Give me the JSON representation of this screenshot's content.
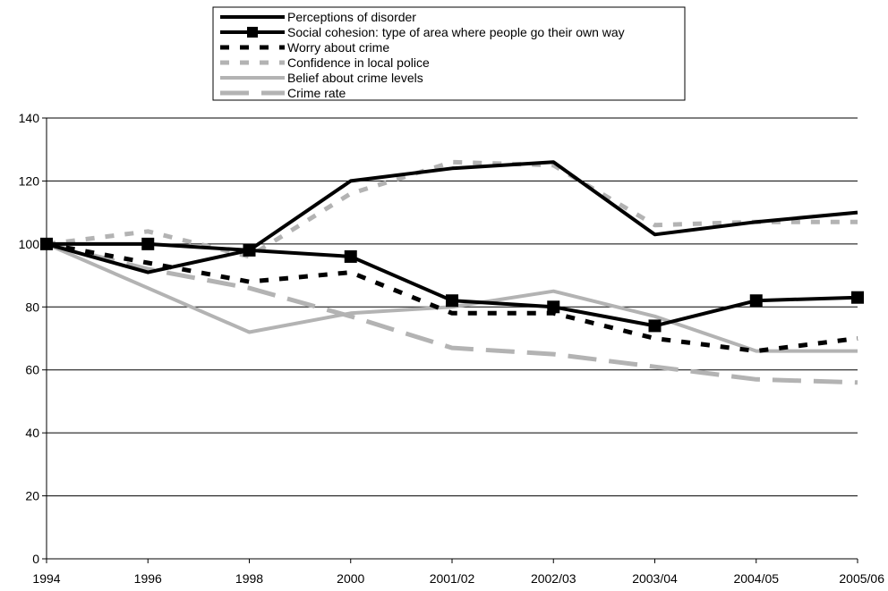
{
  "chart_data": {
    "type": "line",
    "title": "",
    "xlabel": "",
    "ylabel": "",
    "ylim": [
      0,
      140
    ],
    "yticks": [
      0,
      20,
      40,
      60,
      80,
      100,
      120,
      140
    ],
    "grid": true,
    "legend_position": "top-center",
    "categories": [
      "1994",
      "1996",
      "1998",
      "2000",
      "2001/02",
      "2002/03",
      "2003/04",
      "2004/05",
      "2005/06"
    ],
    "series": [
      {
        "name": "Perceptions of disorder",
        "values": [
          100,
          91,
          98,
          120,
          124,
          126,
          103,
          107,
          110
        ],
        "color": "#000000",
        "style": "solid",
        "marker": "none"
      },
      {
        "name": "Social cohesion: type of area where people go their own way",
        "values": [
          100,
          100,
          98,
          96,
          82,
          80,
          74,
          82,
          83
        ],
        "color": "#000000",
        "style": "solid",
        "marker": "square"
      },
      {
        "name": "Worry about crime",
        "values": [
          100,
          94,
          88,
          91,
          78,
          78,
          70,
          66,
          70
        ],
        "color": "#000000",
        "style": "dotted",
        "marker": "none"
      },
      {
        "name": "Confidence in local police",
        "values": [
          100,
          104,
          96,
          116,
          126,
          125,
          106,
          107,
          107
        ],
        "color": "#b3b3b3",
        "style": "dotted",
        "marker": "none"
      },
      {
        "name": "Belief about crime levels",
        "values": [
          100,
          86,
          72,
          78,
          80,
          85,
          77,
          66,
          66
        ],
        "color": "#b3b3b3",
        "style": "solid",
        "marker": "none"
      },
      {
        "name": "Crime rate",
        "values": [
          100,
          92,
          86,
          77,
          67,
          65,
          61,
          57,
          56
        ],
        "color": "#b3b3b3",
        "style": "dashed",
        "marker": "none"
      }
    ]
  }
}
